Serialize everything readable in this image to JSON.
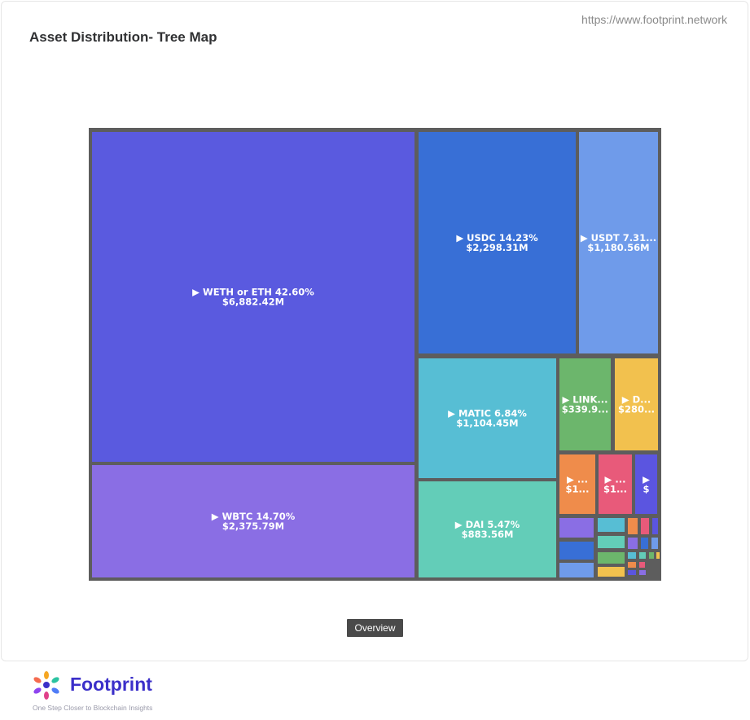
{
  "header": {
    "title": "Asset Distribution- Tree Map",
    "source_url": "https://www.footprint.network"
  },
  "controls": {
    "overview_label": "Overview"
  },
  "footer": {
    "brand_name": "Footprint",
    "tagline": "One Step Closer to Blockchain Insights"
  },
  "chart_data": {
    "type": "treemap",
    "title": "Asset Distribution- Tree Map",
    "items": [
      {
        "name": "WETH or ETH",
        "percent": 42.6,
        "value_usd_m": 6882.42,
        "label_line1": "▶ WETH or ETH 42.60%",
        "label_line2": "$6,882.42M",
        "color": "#5a5adf"
      },
      {
        "name": "WBTC",
        "percent": 14.7,
        "value_usd_m": 2375.79,
        "label_line1": "▶ WBTC 14.70%",
        "label_line2": "$2,375.79M",
        "color": "#8a6ee4"
      },
      {
        "name": "USDC",
        "percent": 14.23,
        "value_usd_m": 2298.31,
        "label_line1": "▶ USDC 14.23%",
        "label_line2": "$2,298.31M",
        "color": "#386fd6"
      },
      {
        "name": "USDT",
        "percent": 7.31,
        "value_usd_m": 1180.56,
        "label_line1": "▶ USDT 7.31...",
        "label_line2": "$1,180.56M",
        "color": "#6f9bea"
      },
      {
        "name": "MATIC",
        "percent": 6.84,
        "value_usd_m": 1104.45,
        "label_line1": "▶ MATIC 6.84%",
        "label_line2": "$1,104.45M",
        "color": "#57bed4"
      },
      {
        "name": "DAI",
        "percent": 5.47,
        "value_usd_m": 883.56,
        "label_line1": "▶ DAI 5.47%",
        "label_line2": "$883.56M",
        "color": "#63cdb8"
      },
      {
        "name": "LINK",
        "label_line1": "▶ LINK...",
        "label_line2": "$339.9...",
        "color": "#6cb66c"
      },
      {
        "name": "D",
        "label_line1": "▶ D...",
        "label_line2": "$280...",
        "color": "#f2c14e"
      },
      {
        "name": "",
        "label_line1": "▶ ...",
        "label_line2": "$1...",
        "color": "#ef8c4b"
      },
      {
        "name": "",
        "label_line1": "▶ ...",
        "label_line2": "$1...",
        "color": "#e85a7a"
      },
      {
        "name": "",
        "label_line1": "▶",
        "label_line2": "$",
        "color": "#5b55e0"
      },
      {
        "name": "",
        "color": "#8a6ee4"
      },
      {
        "name": "",
        "color": "#386fd6"
      },
      {
        "name": "",
        "color": "#6f9bea"
      },
      {
        "name": "",
        "color": "#57bed4"
      },
      {
        "name": "",
        "color": "#63cdb8"
      },
      {
        "name": "",
        "color": "#6cb66c"
      },
      {
        "name": "",
        "color": "#f2c14e"
      },
      {
        "name": "",
        "color": "#ef8c4b"
      },
      {
        "name": "",
        "color": "#e85a7a"
      },
      {
        "name": "",
        "color": "#5b55e0"
      },
      {
        "name": "",
        "color": "#8a6ee4"
      },
      {
        "name": "",
        "color": "#386fd6"
      },
      {
        "name": "",
        "color": "#6f9bea"
      },
      {
        "name": "",
        "color": "#57bed4"
      },
      {
        "name": "",
        "color": "#63cdb8"
      },
      {
        "name": "",
        "color": "#6cb66c"
      },
      {
        "name": "",
        "color": "#f2c14e"
      },
      {
        "name": "",
        "color": "#ef8c4b"
      },
      {
        "name": "",
        "color": "#e85a7a"
      },
      {
        "name": "",
        "color": "#5b55e0"
      },
      {
        "name": "",
        "color": "#8a6ee4"
      }
    ]
  }
}
